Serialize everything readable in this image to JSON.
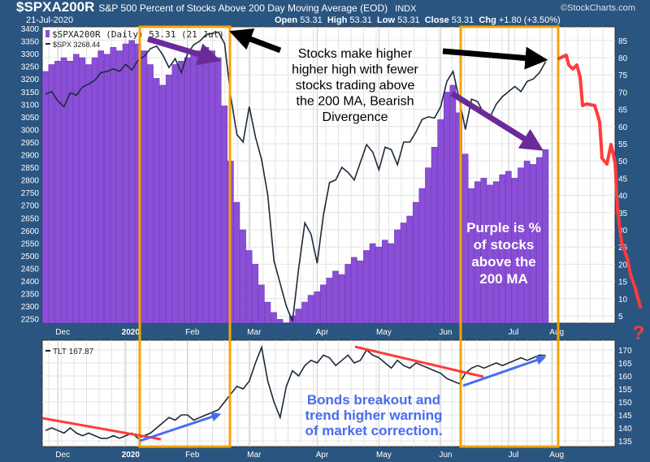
{
  "header": {
    "symbol": "$SPXA200R",
    "description": "S&P 500 Percent of Stocks Above 200 Day Moving Average (EOD)",
    "exchange": "INDX",
    "brand": "©StockCharts.com",
    "date": "21-Jul-2020",
    "open_label": "Open",
    "open": "53.31",
    "high_label": "High",
    "high": "53.31",
    "low_label": "Low",
    "low": "53.31",
    "close_label": "Close",
    "close": "53.31",
    "chg_label": "Chg",
    "chg": "+1.80 (+3.50%)"
  },
  "colors": {
    "background": "#2a5580",
    "bars": "#8a4fd6",
    "line": "#1b2a3a",
    "box": "#f5a300",
    "arrow_purple": "#6a2a9a",
    "arrow_black": "#000000",
    "red": "#ff3b3b",
    "blue": "#4a6cf0"
  },
  "chart_data": [
    {
      "type": "bar+line",
      "legend": [
        "$SPXA200R (Daily) 53.31 (21 Jul)",
        "$SPX 3268.44"
      ],
      "legend_placement": "top-left",
      "grid": true,
      "x_ticks": [
        "Dec",
        "2020",
        "Feb",
        "Mar",
        "Apr",
        "May",
        "Jun",
        "Jul",
        "Aug"
      ],
      "x_range": [
        "2019-11-25",
        "2020-07-21"
      ],
      "series": [
        {
          "name": "$SPXA200R",
          "axis": "right",
          "type": "bar",
          "ylim": [
            0,
            90
          ],
          "yticks": [
            5,
            10,
            15,
            20,
            25,
            30,
            35,
            40,
            45,
            50,
            55,
            60,
            65,
            70,
            75,
            80,
            85
          ],
          "values": [
            76,
            78,
            79,
            80,
            79,
            81,
            80,
            78,
            80,
            82,
            81,
            83,
            82,
            84,
            85,
            84,
            82,
            78,
            74,
            72,
            75,
            78,
            79,
            80,
            81,
            82,
            83,
            82,
            80,
            66,
            50,
            38,
            30,
            24,
            20,
            14,
            9,
            6,
            4,
            3,
            5,
            7,
            9,
            11,
            12,
            14,
            16,
            18,
            17,
            20,
            22,
            21,
            24,
            26,
            25,
            27,
            26,
            30,
            32,
            34,
            38,
            42,
            48,
            54,
            62,
            70,
            72,
            64,
            52,
            42,
            44,
            45,
            43,
            44,
            46,
            47,
            45,
            48,
            50,
            49,
            51,
            53.31
          ]
        },
        {
          "name": "$SPX",
          "axis": "left",
          "type": "line",
          "ylim": [
            2200,
            3420
          ],
          "yticks": [
            2250,
            2300,
            2350,
            2400,
            2450,
            2500,
            2550,
            2600,
            2650,
            2700,
            2750,
            2800,
            2850,
            2900,
            2950,
            3000,
            3050,
            3100,
            3150,
            3200,
            3250,
            3300,
            3350,
            3400
          ],
          "values": [
            3140,
            3150,
            3113,
            3090,
            3145,
            3135,
            3168,
            3180,
            3195,
            3225,
            3230,
            3240,
            3230,
            3258,
            3235,
            3275,
            3290,
            3320,
            3330,
            3295,
            3245,
            3280,
            3225,
            3300,
            3335,
            3350,
            3375,
            3380,
            3386,
            3340,
            3130,
            2980,
            2950,
            3090,
            2970,
            2880,
            2740,
            2480,
            2390,
            2300,
            2240,
            2450,
            2630,
            2585,
            2470,
            2660,
            2790,
            2800,
            2850,
            2830,
            2800,
            2870,
            2940,
            2910,
            2840,
            2930,
            2920,
            2860,
            2950,
            2950,
            2990,
            3040,
            3050,
            3045,
            3090,
            3190,
            3230,
            3120,
            3000,
            3120,
            3110,
            3060,
            3050,
            3100,
            3130,
            3150,
            3170,
            3150,
            3190,
            3200,
            3225,
            3268.44
          ]
        }
      ]
    },
    {
      "type": "line",
      "legend": [
        "TLT 167.87"
      ],
      "legend_placement": "top-left",
      "grid": true,
      "x_ticks": [
        "Dec",
        "2020",
        "Feb",
        "Mar",
        "Apr",
        "May",
        "Jun",
        "Jul",
        "Aug"
      ],
      "ylim": [
        132,
        173
      ],
      "yticks": [
        135,
        140,
        145,
        150,
        155,
        160,
        165,
        170
      ],
      "series": [
        {
          "name": "TLT",
          "values": [
            139,
            140,
            139,
            138,
            140,
            138,
            137,
            138,
            137,
            136,
            136,
            137,
            136,
            137,
            138,
            136,
            137,
            138,
            140,
            142,
            144,
            143,
            145,
            145,
            143,
            144,
            145,
            146,
            147,
            150,
            153,
            156,
            155,
            158,
            165,
            171,
            158,
            150,
            144,
            156,
            162,
            160,
            164,
            166,
            165,
            168,
            167,
            164,
            166,
            168,
            165,
            166,
            170,
            168,
            167,
            165,
            163,
            166,
            164,
            163,
            165,
            164,
            163,
            162,
            161,
            159,
            158,
            157,
            161,
            163,
            164,
            163,
            164,
            165,
            164,
            165,
            166,
            167,
            166,
            167,
            168,
            167.87
          ]
        }
      ]
    }
  ],
  "annotations": {
    "divergence_text": [
      "Stocks make higher",
      "higher high with fewer",
      "stocks trading above",
      "the 200 MA, Bearish",
      "Divergence"
    ],
    "purple_text": [
      "Purple is %",
      "of stocks",
      "above the",
      "200 MA"
    ],
    "bonds_text": [
      "Bonds breakout and",
      "trend higher warning",
      "of market correction."
    ],
    "question_mark": "?"
  }
}
